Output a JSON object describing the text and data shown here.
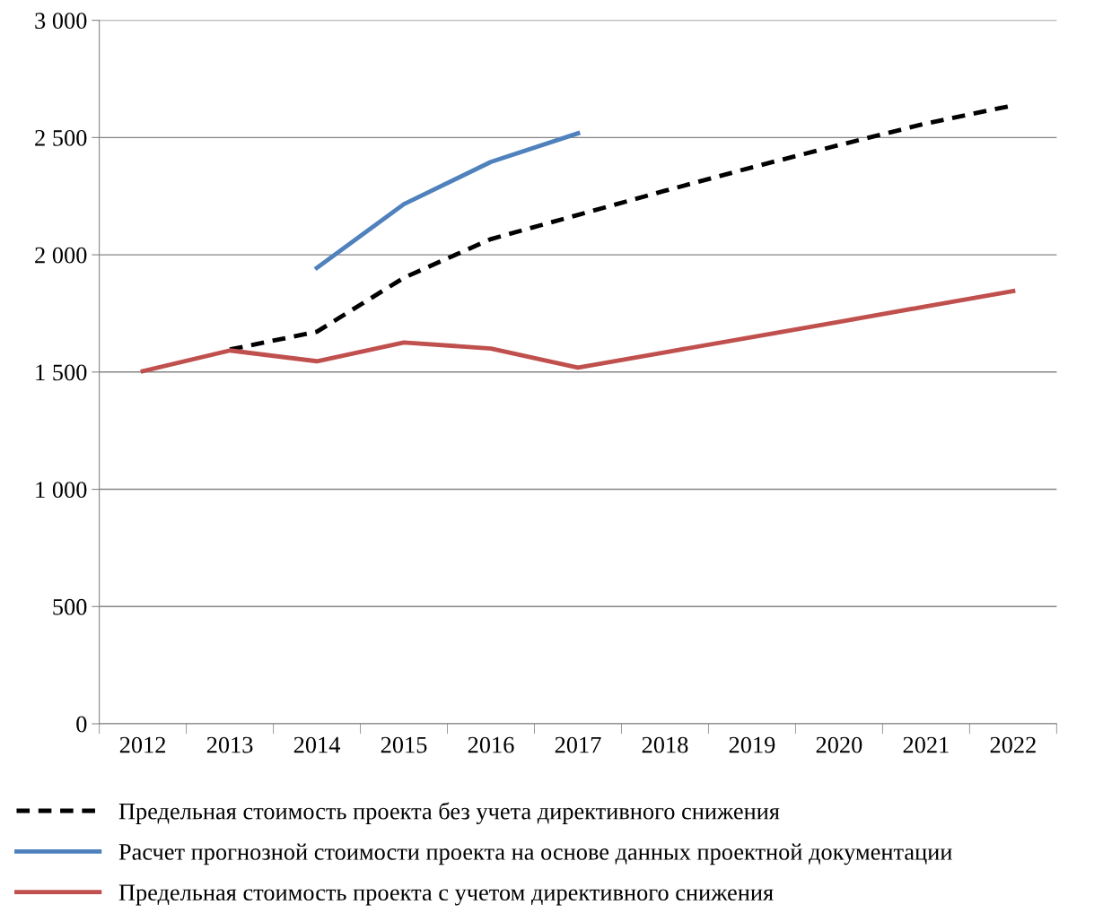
{
  "chart_data": {
    "type": "line",
    "categories": [
      "2012",
      "2013",
      "2014",
      "2015",
      "2016",
      "2017",
      "2018",
      "2019",
      "2020",
      "2021",
      "2022"
    ],
    "series": [
      {
        "name": "Предельная стоимость проекта без учета директивного снижения",
        "color": "#000000",
        "line_style": "dashed",
        "values": [
          null,
          1596,
          1672,
          1902,
          2067,
          2170,
          2273,
          2373,
          2468,
          2560,
          2637
        ]
      },
      {
        "name": "Расчет прогнозной стоимости проекта на основе данных проектной документации",
        "color": "#4f81bd",
        "line_style": "solid",
        "values": [
          null,
          null,
          1944,
          2216,
          2396,
          2518,
          null,
          null,
          null,
          null,
          null
        ]
      },
      {
        "name": "Предельная стоимость проекта с учетом директивного снижения",
        "color": "#c0504d",
        "line_style": "solid",
        "values": [
          1504,
          1592,
          1546,
          1626,
          1600,
          1519,
          1584,
          1649,
          1714,
          1780,
          1845
        ]
      }
    ],
    "ylim": [
      0,
      3000
    ],
    "yticks": [
      0,
      500,
      {
        "value": 1000,
        "label": "1 000"
      },
      {
        "value": 1500,
        "label": "1 500"
      },
      {
        "value": 2000,
        "label": "2 000"
      },
      {
        "value": 2500,
        "label": "2 500"
      },
      {
        "value": 3000,
        "label": "3 000"
      }
    ],
    "grid": "y",
    "legend": "bottom",
    "marker": "none"
  }
}
